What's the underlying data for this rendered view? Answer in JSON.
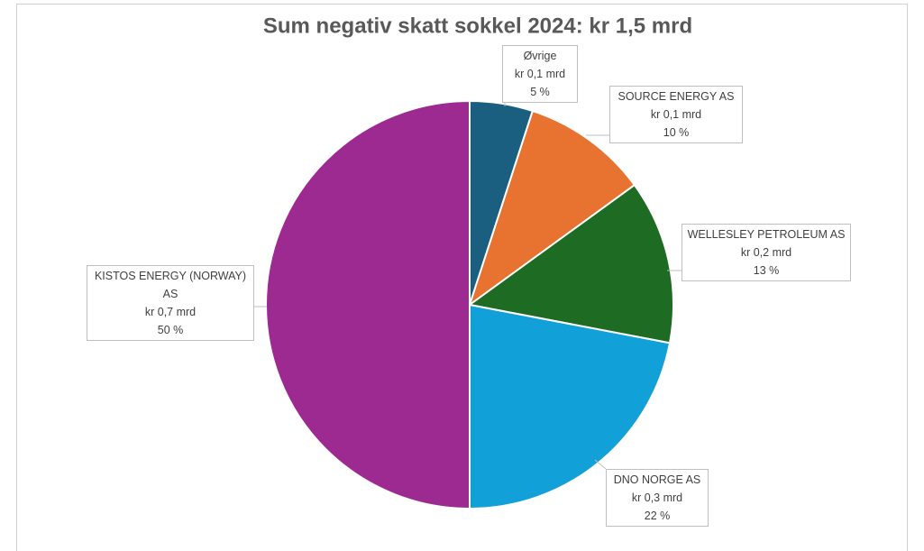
{
  "chart_data": {
    "type": "pie",
    "title": "Sum negativ skatt sokkel 2024: kr 1,5 mrd",
    "categories": [
      "Øvrige",
      "SOURCE ENERGY AS",
      "WELLESLEY PETROLEUM AS",
      "DNO NORGE AS",
      "KISTOS ENERGY (NORWAY) AS"
    ],
    "values": [
      5,
      10,
      13,
      22,
      50
    ],
    "value_labels": [
      "5 %",
      "10 %",
      "13 %",
      "22 %",
      "50 %"
    ],
    "amount_labels": [
      "kr 0,1 mrd",
      "kr 0,1 mrd",
      "kr 0,2 mrd",
      "kr 0,3 mrd",
      "kr 0,7 mrd"
    ],
    "colors": [
      "#1a5e80",
      "#e87230",
      "#1e6b24",
      "#12a0d8",
      "#9c2a90"
    ]
  }
}
